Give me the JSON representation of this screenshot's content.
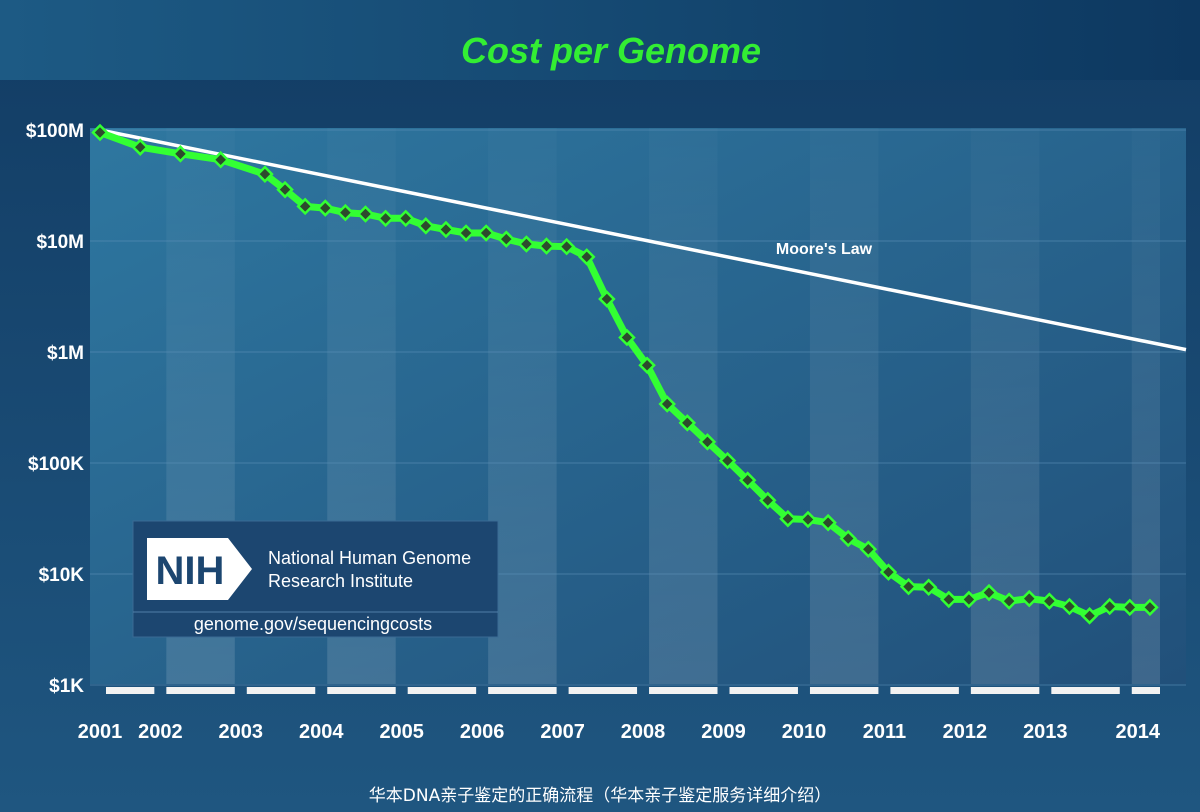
{
  "colors": {
    "background": "#1a4a70",
    "plot_background": "#2c6a94",
    "cost_line": "#33ff33",
    "marker_fill": "#2d4a2d",
    "moores_law_line": "#ffffff",
    "title": "#33ee33",
    "text": "#ffffff",
    "logo_panel": "#1c4670"
  },
  "chart_data": {
    "type": "line",
    "title": "Cost per Genome",
    "xlabel": "",
    "ylabel": "",
    "y_scale": "log",
    "ylim": [
      1000,
      100000000
    ],
    "xlim": [
      2001.0,
      2014.25
    ],
    "yticks": [
      {
        "value": 100000000,
        "label": "$100M"
      },
      {
        "value": 10000000,
        "label": "$10M"
      },
      {
        "value": 1000000,
        "label": "$1M"
      },
      {
        "value": 100000,
        "label": "$100K"
      },
      {
        "value": 10000,
        "label": "$10K"
      },
      {
        "value": 1000,
        "label": "$1K"
      }
    ],
    "xticks": [
      {
        "value": 2001.0,
        "label": "2001"
      },
      {
        "value": 2001.75,
        "label": "2002"
      },
      {
        "value": 2002.75,
        "label": "2003"
      },
      {
        "value": 2003.75,
        "label": "2004"
      },
      {
        "value": 2004.75,
        "label": "2005"
      },
      {
        "value": 2005.75,
        "label": "2006"
      },
      {
        "value": 2006.75,
        "label": "2007"
      },
      {
        "value": 2007.75,
        "label": "2008"
      },
      {
        "value": 2008.75,
        "label": "2009"
      },
      {
        "value": 2009.75,
        "label": "2010"
      },
      {
        "value": 2010.75,
        "label": "2011"
      },
      {
        "value": 2011.75,
        "label": "2012"
      },
      {
        "value": 2012.75,
        "label": "2013"
      },
      {
        "value": 2013.75,
        "label": "2014"
      }
    ],
    "grid": true,
    "series": [
      {
        "x": [
          2001.0,
          2001.5,
          2002.0,
          2002.5,
          2003.05,
          2003.3,
          2003.55,
          2003.8,
          2004.05,
          2004.3,
          2004.55,
          2004.8,
          2005.05,
          2005.3,
          2005.55,
          2005.8,
          2006.05,
          2006.3,
          2006.55,
          2006.8,
          2007.05,
          2007.3,
          2007.55,
          2007.8,
          2008.05,
          2008.3,
          2008.55,
          2008.8,
          2009.05,
          2009.3,
          2009.55,
          2009.8,
          2010.05,
          2010.3,
          2010.55,
          2010.8,
          2011.05,
          2011.3,
          2011.55,
          2011.8,
          2012.05,
          2012.3,
          2012.55,
          2012.8,
          2013.05,
          2013.3,
          2013.55,
          2013.8,
          2014.05
        ],
        "y": [
          95000000,
          70000000,
          61000000,
          54000000,
          40000000,
          29000000,
          20500000,
          19800000,
          18000000,
          17500000,
          16000000,
          16000000,
          13700000,
          12700000,
          11800000,
          11800000,
          10400000,
          9400000,
          9000000,
          8900000,
          7200000,
          3000000,
          1350000,
          760000,
          340000,
          230000,
          155000,
          105000,
          70000,
          46000,
          31500,
          31000,
          29000,
          20900,
          16700,
          10400,
          7700,
          7600,
          5900,
          5900,
          6800,
          5700,
          6000,
          5700,
          5100,
          4200,
          5100,
          5000,
          5000
        ]
      },
      {
        "name": "Moore's Law",
        "x": [
          2001.0,
          2014.25
        ],
        "y": [
          100000000,
          1050000
        ]
      }
    ]
  },
  "logo": {
    "mark": "NIH",
    "line1": "National Human Genome",
    "line2": "Research Institute",
    "url": "genome.gov/sequencingcosts"
  },
  "caption": "华本DNA亲子鉴定的正确流程（华本亲子鉴定服务详细介绍）"
}
